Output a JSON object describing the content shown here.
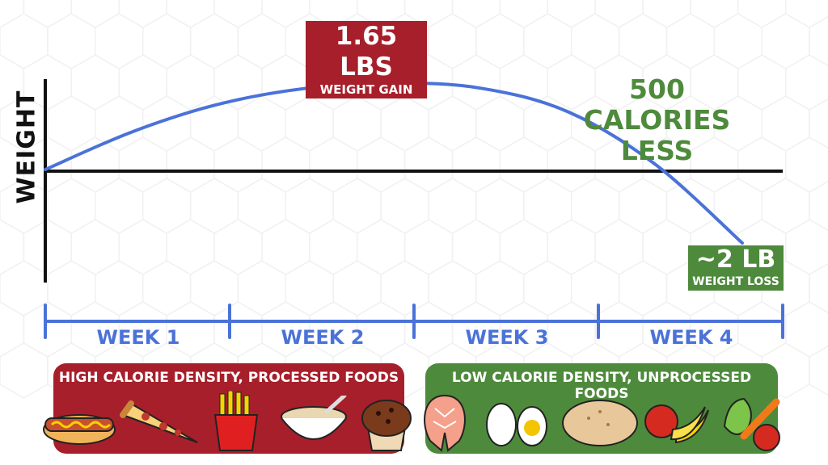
{
  "chart_data": {
    "type": "line",
    "x": [
      "WEEK 1",
      "WEEK 2",
      "WEEK 3",
      "WEEK 4"
    ],
    "ylabel": "WEIGHT",
    "series": [
      {
        "x": [
          0,
          0.5,
          1,
          1.5,
          2,
          2.5,
          3,
          3.5,
          4
        ],
        "values": [
          0,
          0.72,
          1.25,
          1.55,
          1.65,
          1.55,
          1.1,
          0.1,
          -1.4
        ]
      }
    ],
    "baseline": 0,
    "annotations": {
      "gain_value": "1.65 LBS",
      "gain_label": "WEIGHT GAIN",
      "calories_line1": "500 CALORIES",
      "calories_line2": "LESS",
      "loss_value": "~2 LB",
      "loss_label": "WEIGHT LOSS"
    },
    "colors": {
      "curve": "#4a72d8",
      "axis": "#111111",
      "gain": "#a61f2b",
      "loss": "#4e8a3c"
    }
  },
  "weeks": [
    "WEEK 1",
    "WEEK 2",
    "WEEK 3",
    "WEEK 4"
  ],
  "panels": {
    "high": {
      "title": "HIGH CALORIE DENSITY, PROCESSED FOODS",
      "foods": [
        "hotdog-icon",
        "pizza-slice-icon",
        "fries-icon",
        "oatmeal-bowl-icon",
        "muffin-icon"
      ]
    },
    "low": {
      "title": "LOW CALORIE DENSITY, UNPROCESSED FOODS",
      "foods": [
        "salmon-steak-icon",
        "eggs-icon",
        "potato-icon",
        "fruit-icon",
        "vegetables-icon"
      ]
    }
  }
}
